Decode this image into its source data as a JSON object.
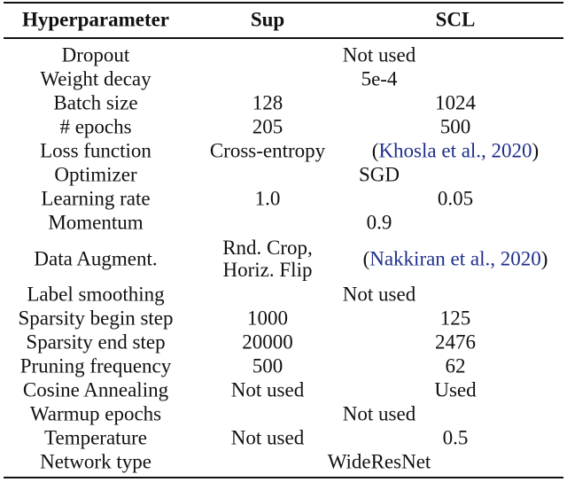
{
  "headers": [
    "Hyperparameter",
    "Sup",
    "SCL"
  ],
  "rows": [
    {
      "name": "Dropout",
      "span": "Not used"
    },
    {
      "name": "Weight decay",
      "span": "5e-4"
    },
    {
      "name": "Batch size",
      "sup": "128",
      "scl": "1024"
    },
    {
      "name": "# epochs",
      "sup": "205",
      "scl": "500"
    },
    {
      "name": "Loss function",
      "sup": "Cross-entropy",
      "scl_open": "(",
      "scl_cite": "Khosla et al., 2020",
      "scl_close": ")"
    },
    {
      "name": "Optimizer",
      "span": "SGD"
    },
    {
      "name": "Learning rate",
      "sup": "1.0",
      "scl": "0.05"
    },
    {
      "name": "Momentum",
      "span": "0.9"
    },
    {
      "name": "Data Augment.",
      "sup_lines": [
        "Rnd. Crop,",
        "Horiz. Flip"
      ],
      "scl_open": "(",
      "scl_cite": "Nakkiran et al., 2020",
      "scl_close": ")"
    },
    {
      "name": "Label smoothing",
      "span": "Not used"
    },
    {
      "name": "Sparsity begin step",
      "sup": "1000",
      "scl": "125"
    },
    {
      "name": "Sparsity end step",
      "sup": "20000",
      "scl": "2476"
    },
    {
      "name": "Pruning frequency",
      "sup": "500",
      "scl": "62"
    },
    {
      "name": "Cosine Annealing",
      "sup": "Not used",
      "scl": "Used"
    },
    {
      "name": "Warmup epochs",
      "span": "Not used"
    },
    {
      "name": "Temperature",
      "sup": "Not used",
      "scl": "0.5"
    },
    {
      "name": "Network type",
      "span": "WideResNet"
    }
  ]
}
